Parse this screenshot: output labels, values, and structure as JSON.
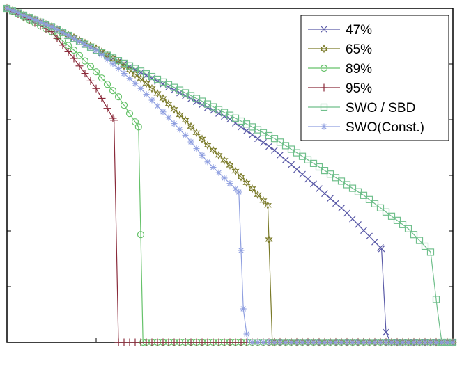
{
  "chart_data": {
    "type": "line",
    "title": "",
    "xlabel": "",
    "ylabel": "",
    "xlim": [
      0,
      100
    ],
    "ylim": [
      0,
      1
    ],
    "grid": false,
    "legend_position": "top-right",
    "series": [
      {
        "name": "47%",
        "color": "#5b5ba8",
        "marker": "x",
        "x": [
          0,
          10,
          20,
          30,
          40,
          50,
          60,
          70,
          76,
          84,
          85,
          86,
          90,
          100
        ],
        "y": [
          1.0,
          0.945,
          0.875,
          0.808,
          0.738,
          0.668,
          0.575,
          0.46,
          0.39,
          0.28,
          0.03,
          0.0,
          0.0,
          0.0
        ]
      },
      {
        "name": "65%",
        "color": "#7a7a28",
        "marker": "hexagram",
        "x": [
          0,
          10,
          20,
          25,
          30,
          35,
          40,
          45,
          50,
          55,
          58.5,
          59.5,
          65,
          80,
          100
        ],
        "y": [
          1.0,
          0.945,
          0.88,
          0.84,
          0.79,
          0.73,
          0.665,
          0.59,
          0.53,
          0.46,
          0.41,
          0.0,
          0.0,
          0.0,
          0.0
        ]
      },
      {
        "name": "89%",
        "color": "#66c26a",
        "marker": "o",
        "x": [
          0,
          5,
          10,
          15,
          20,
          25,
          29.5,
          30.5,
          40,
          60,
          100
        ],
        "y": [
          1.0,
          0.965,
          0.93,
          0.875,
          0.81,
          0.735,
          0.645,
          0.0,
          0.0,
          0.0,
          0.0
        ]
      },
      {
        "name": "95%",
        "color": "#8a2a3a",
        "marker": "+",
        "x": [
          0,
          5,
          10,
          15,
          20,
          24,
          25,
          30,
          40,
          60,
          100
        ],
        "y": [
          1.0,
          0.965,
          0.93,
          0.85,
          0.76,
          0.665,
          0.0,
          0.0,
          0.0,
          0.0,
          0.0
        ]
      },
      {
        "name": "SWO / SBD",
        "color": "#6fbf8b",
        "marker": "square",
        "x": [
          0,
          10,
          20,
          30,
          40,
          50,
          60,
          70,
          80,
          90,
          95,
          96.5,
          97.5,
          100
        ],
        "y": [
          1.0,
          0.945,
          0.875,
          0.812,
          0.747,
          0.68,
          0.61,
          0.525,
          0.44,
          0.34,
          0.27,
          0.1,
          0.0,
          0.0
        ]
      },
      {
        "name": "SWO(Const.)",
        "color": "#8f9fe0",
        "marker": "*",
        "x": [
          0,
          10,
          20,
          25,
          30,
          35,
          40,
          45,
          52,
          53,
          54,
          60,
          80,
          100
        ],
        "y": [
          1.0,
          0.945,
          0.875,
          0.82,
          0.76,
          0.69,
          0.62,
          0.54,
          0.45,
          0.1,
          0.0,
          0.0,
          0.0,
          0.0
        ]
      }
    ]
  }
}
